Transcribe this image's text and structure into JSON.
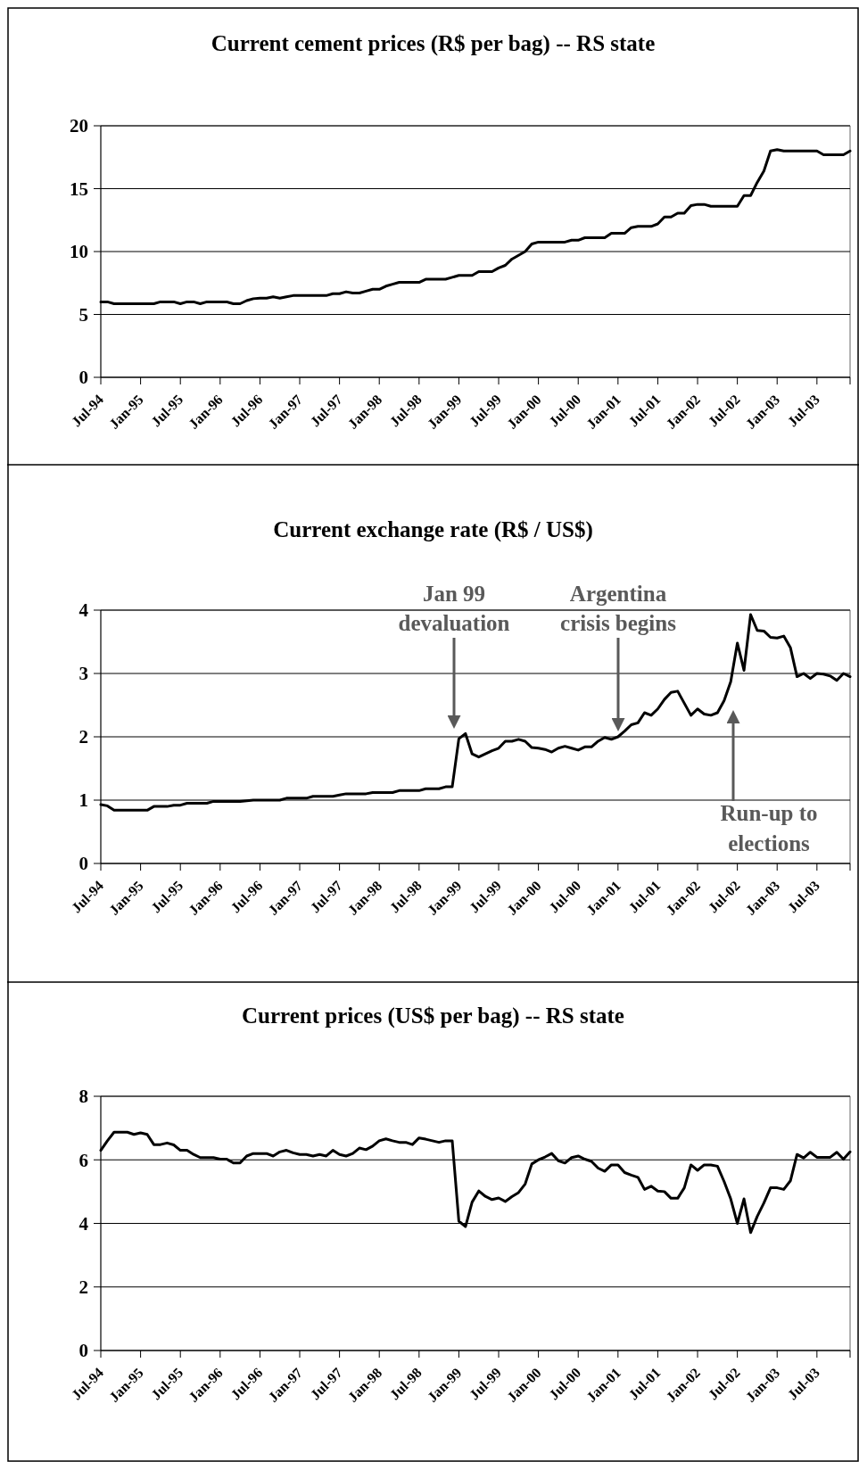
{
  "chart_data": [
    {
      "type": "line",
      "title": "Current cement prices (R$ per bag) -- RS state",
      "categories": [
        "Jul-94",
        null,
        null,
        null,
        null,
        null,
        "Jan-95",
        null,
        null,
        null,
        null,
        null,
        "Jul-95",
        null,
        null,
        null,
        null,
        null,
        "Jan-96",
        null,
        null,
        null,
        null,
        null,
        "Jul-96",
        null,
        null,
        null,
        null,
        null,
        "Jan-97",
        null,
        null,
        null,
        null,
        null,
        "Jul-97",
        null,
        null,
        null,
        null,
        null,
        "Jan-98",
        null,
        null,
        null,
        null,
        null,
        "Jul-98",
        null,
        null,
        null,
        null,
        null,
        "Jan-99",
        null,
        null,
        null,
        null,
        null,
        "Jul-99",
        null,
        null,
        null,
        null,
        null,
        "Jan-00",
        null,
        null,
        null,
        null,
        null,
        "Jul-00",
        null,
        null,
        null,
        null,
        null,
        "Jan-01",
        null,
        null,
        null,
        null,
        null,
        "Jul-01",
        null,
        null,
        null,
        null,
        null,
        "Jan-02",
        null,
        null,
        null,
        null,
        null,
        "Jul-02",
        null,
        null,
        null,
        null,
        null,
        "Jan-03",
        null,
        null,
        null,
        null,
        null,
        "Jul-03",
        null,
        null,
        null,
        null,
        null
      ],
      "series": [
        {
          "color": "#000000",
          "values": [
            6.0,
            6.0,
            5.85,
            5.85,
            5.85,
            5.85,
            5.85,
            5.85,
            5.85,
            6.0,
            6.0,
            6.0,
            5.85,
            6.0,
            6.0,
            5.85,
            6.0,
            6.0,
            6.0,
            6.0,
            5.85,
            5.85,
            6.1,
            6.25,
            6.3,
            6.3,
            6.4,
            6.3,
            6.4,
            6.5,
            6.5,
            6.5,
            6.5,
            6.5,
            6.5,
            6.65,
            6.65,
            6.8,
            6.7,
            6.7,
            6.85,
            7.0,
            7.0,
            7.25,
            7.4,
            7.55,
            7.55,
            7.55,
            7.55,
            7.8,
            7.8,
            7.8,
            7.8,
            7.95,
            8.1,
            8.1,
            8.1,
            8.4,
            8.4,
            8.4,
            8.7,
            8.9,
            9.4,
            9.7,
            10.0,
            10.6,
            10.75,
            10.75,
            10.75,
            10.75,
            10.75,
            10.9,
            10.9,
            11.1,
            11.1,
            11.1,
            11.1,
            11.45,
            11.45,
            11.45,
            11.9,
            12.0,
            12.0,
            12.0,
            12.2,
            12.75,
            12.75,
            13.05,
            13.05,
            13.65,
            13.75,
            13.75,
            13.6,
            13.6,
            13.6,
            13.6,
            13.6,
            14.45,
            14.45,
            15.5,
            16.4,
            18.0,
            18.1,
            18.0,
            18.0,
            18.0,
            18.0,
            18.0,
            18.0,
            17.7,
            17.7,
            17.7,
            17.7,
            18.0
          ]
        }
      ],
      "ylim": [
        0,
        20
      ],
      "yticks": [
        0,
        5,
        10,
        15,
        20
      ],
      "grid": "y",
      "line_style": "solid"
    },
    {
      "type": "line",
      "title": "Current exchange rate (R$ / US$)",
      "categories": [
        "Jul-94",
        null,
        null,
        null,
        null,
        null,
        "Jan-95",
        null,
        null,
        null,
        null,
        null,
        "Jul-95",
        null,
        null,
        null,
        null,
        null,
        "Jan-96",
        null,
        null,
        null,
        null,
        null,
        "Jul-96",
        null,
        null,
        null,
        null,
        null,
        "Jan-97",
        null,
        null,
        null,
        null,
        null,
        "Jul-97",
        null,
        null,
        null,
        null,
        null,
        "Jan-98",
        null,
        null,
        null,
        null,
        null,
        "Jul-98",
        null,
        null,
        null,
        null,
        null,
        "Jan-99",
        null,
        null,
        null,
        null,
        null,
        "Jul-99",
        null,
        null,
        null,
        null,
        null,
        "Jan-00",
        null,
        null,
        null,
        null,
        null,
        "Jul-00",
        null,
        null,
        null,
        null,
        null,
        "Jan-01",
        null,
        null,
        null,
        null,
        null,
        "Jul-01",
        null,
        null,
        null,
        null,
        null,
        "Jan-02",
        null,
        null,
        null,
        null,
        null,
        "Jul-02",
        null,
        null,
        null,
        null,
        null,
        "Jan-03",
        null,
        null,
        null,
        null,
        null,
        "Jul-03",
        null,
        null,
        null,
        null,
        null
      ],
      "series": [
        {
          "color": "#000000",
          "values": [
            0.93,
            0.91,
            0.84,
            0.84,
            0.84,
            0.84,
            0.84,
            0.84,
            0.9,
            0.9,
            0.9,
            0.92,
            0.92,
            0.95,
            0.95,
            0.95,
            0.95,
            0.98,
            0.98,
            0.98,
            0.98,
            0.98,
            0.99,
            1.0,
            1.0,
            1.0,
            1.0,
            1.0,
            1.03,
            1.03,
            1.03,
            1.03,
            1.06,
            1.06,
            1.06,
            1.06,
            1.08,
            1.1,
            1.1,
            1.1,
            1.1,
            1.12,
            1.12,
            1.12,
            1.12,
            1.15,
            1.15,
            1.15,
            1.15,
            1.18,
            1.18,
            1.18,
            1.21,
            1.21,
            1.97,
            2.05,
            1.73,
            1.68,
            1.73,
            1.78,
            1.82,
            1.93,
            1.93,
            1.96,
            1.93,
            1.83,
            1.82,
            1.8,
            1.76,
            1.82,
            1.85,
            1.82,
            1.79,
            1.84,
            1.84,
            1.93,
            1.99,
            1.96,
            2.0,
            2.09,
            2.19,
            2.22,
            2.38,
            2.34,
            2.44,
            2.59,
            2.7,
            2.72,
            2.53,
            2.34,
            2.44,
            2.36,
            2.34,
            2.38,
            2.57,
            2.87,
            3.48,
            3.05,
            3.93,
            3.68,
            3.67,
            3.57,
            3.56,
            3.59,
            3.41,
            2.95,
            3.0,
            2.92,
            3.0,
            2.99,
            2.96,
            2.89,
            3.0,
            2.95
          ]
        }
      ],
      "annotations": [
        "Jan 99\ndevaluation",
        "Argentina\ncrisis begins",
        "Run-up to\nelections"
      ],
      "ylim": [
        0,
        4
      ],
      "yticks": [
        0,
        1,
        2,
        3,
        4
      ],
      "grid": "y",
      "line_style": "solid"
    },
    {
      "type": "line",
      "title": "Current prices (US$ per bag) -- RS state",
      "categories": [
        "Jul-94",
        null,
        null,
        null,
        null,
        null,
        "Jan-95",
        null,
        null,
        null,
        null,
        null,
        "Jul-95",
        null,
        null,
        null,
        null,
        null,
        "Jan-96",
        null,
        null,
        null,
        null,
        null,
        "Jul-96",
        null,
        null,
        null,
        null,
        null,
        "Jan-97",
        null,
        null,
        null,
        null,
        null,
        "Jul-97",
        null,
        null,
        null,
        null,
        null,
        "Jan-98",
        null,
        null,
        null,
        null,
        null,
        "Jul-98",
        null,
        null,
        null,
        null,
        null,
        "Jan-99",
        null,
        null,
        null,
        null,
        null,
        "Jul-99",
        null,
        null,
        null,
        null,
        null,
        "Jan-00",
        null,
        null,
        null,
        null,
        null,
        "Jul-00",
        null,
        null,
        null,
        null,
        null,
        "Jan-01",
        null,
        null,
        null,
        null,
        null,
        "Jul-01",
        null,
        null,
        null,
        null,
        null,
        "Jan-02",
        null,
        null,
        null,
        null,
        null,
        "Jul-02",
        null,
        null,
        null,
        null,
        null,
        "Jan-03",
        null,
        null,
        null,
        null,
        null,
        "Jul-03",
        null,
        null,
        null,
        null,
        null
      ],
      "series": [
        {
          "color": "#000000",
          "values": [
            6.3,
            6.6,
            6.87,
            6.87,
            6.87,
            6.8,
            6.85,
            6.8,
            6.48,
            6.48,
            6.53,
            6.47,
            6.3,
            6.3,
            6.17,
            6.07,
            6.07,
            6.07,
            6.02,
            6.02,
            5.9,
            5.9,
            6.12,
            6.2,
            6.2,
            6.2,
            6.12,
            6.25,
            6.3,
            6.22,
            6.17,
            6.17,
            6.12,
            6.17,
            6.12,
            6.3,
            6.17,
            6.12,
            6.2,
            6.37,
            6.32,
            6.43,
            6.6,
            6.66,
            6.6,
            6.55,
            6.55,
            6.48,
            6.69,
            6.65,
            6.6,
            6.55,
            6.6,
            6.6,
            4.07,
            3.9,
            4.67,
            5.02,
            4.85,
            4.75,
            4.8,
            4.69,
            4.84,
            4.97,
            5.24,
            5.87,
            6.0,
            6.09,
            6.2,
            5.97,
            5.9,
            6.07,
            6.12,
            6.02,
            5.95,
            5.74,
            5.64,
            5.84,
            5.84,
            5.6,
            5.52,
            5.45,
            5.07,
            5.17,
            5.02,
            5.0,
            4.79,
            4.79,
            5.12,
            5.84,
            5.67,
            5.84,
            5.84,
            5.8,
            5.32,
            4.77,
            4.0,
            4.77,
            3.71,
            4.22,
            4.64,
            5.12,
            5.12,
            5.07,
            5.34,
            6.17,
            6.06,
            6.24,
            6.08,
            6.08,
            6.08,
            6.24,
            6.02,
            6.25
          ]
        }
      ],
      "ylim": [
        0,
        8
      ],
      "yticks": [
        0,
        2,
        4,
        6,
        8
      ],
      "grid": "y",
      "line_style": "solid"
    }
  ]
}
